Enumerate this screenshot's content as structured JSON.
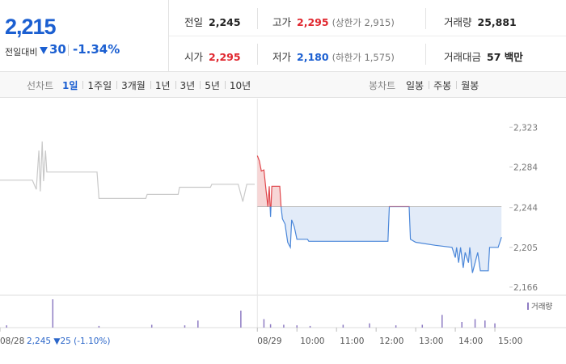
{
  "quote": {
    "price": "2,215",
    "change_label": "전일대비",
    "change": "30",
    "change_rate": "-1.34%",
    "stats": [
      {
        "label": "전일",
        "value": "2,245"
      },
      {
        "label": "고가",
        "value": "2,295",
        "note": "(상한가 2,915)",
        "color": "#e0262e"
      },
      {
        "label": "거래량",
        "value": "25,881"
      },
      {
        "label": "시가",
        "value": "2,295",
        "color": "#e0262e"
      },
      {
        "label": "저가",
        "value": "2,180",
        "note": "(하한가 1,575)",
        "color": "#1b5fd1"
      },
      {
        "label": "거래대금",
        "value": "57 백만"
      }
    ]
  },
  "tabs": {
    "line_label": "선차트",
    "line_periods": [
      "1일",
      "1주일",
      "3개월",
      "1년",
      "3년",
      "5년",
      "10년"
    ],
    "candle_label": "봉차트",
    "candle_periods": [
      "일봉",
      "주봉",
      "월봉"
    ]
  },
  "chart_data": {
    "type": "line",
    "prev_summary": "2,245 ▼25 (-1.10%)",
    "xlim": [
      0,
      772
    ],
    "ylim": [
      2158,
      2351
    ],
    "xticks": [
      {
        "value": 0,
        "label": "08/28"
      },
      {
        "value": 390,
        "label": "08/29"
      },
      {
        "value": 450,
        "label": "10:00"
      },
      {
        "value": 510,
        "label": "11:00"
      },
      {
        "value": 570,
        "label": "12:00"
      },
      {
        "value": 630,
        "label": "13:00"
      },
      {
        "value": 690,
        "label": "14:00"
      },
      {
        "value": 750,
        "label": "15:00"
      }
    ],
    "yticks": [
      {
        "value": 2323,
        "label": "2,323"
      },
      {
        "value": 2284,
        "label": "2,284"
      },
      {
        "value": 2244,
        "label": "2,244"
      },
      {
        "value": 2205,
        "label": "2,205"
      },
      {
        "value": 2166,
        "label": "2,166"
      }
    ],
    "grid": false,
    "reference": 2245,
    "up_color": "#e0474c",
    "down_color": "#4b87d9",
    "up_fill": "#f7d6d6",
    "down_fill": "#e2ebf8",
    "series": [
      {
        "color": "#c9c9c9",
        "x": [
          0,
          49,
          55,
          59,
          61,
          64,
          66,
          69,
          71,
          147,
          150,
          221,
          223,
          270,
          272,
          319,
          321,
          361,
          368,
          374,
          386
        ],
        "values": [
          2271,
          2271,
          2262,
          2300,
          2260,
          2309,
          2270,
          2300,
          2279,
          2279,
          2253,
          2253,
          2257,
          2257,
          2264,
          2264,
          2267,
          2267,
          2250,
          2267,
          2267
        ]
      },
      {
        "color": "split",
        "x": [
          390,
          393,
          396,
          400,
          403,
          406,
          408,
          410,
          412,
          424,
          426,
          428,
          432,
          436,
          440,
          442,
          446,
          450,
          466,
          468,
          588,
          590,
          620,
          622,
          630,
          660,
          685,
          690,
          692,
          695,
          698,
          702,
          705,
          710,
          712,
          716,
          720,
          724,
          728,
          740,
          742,
          755,
          760
        ],
        "values": [
          2295,
          2290,
          2280,
          2281,
          2262,
          2245,
          2265,
          2235,
          2265,
          2265,
          2245,
          2233,
          2228,
          2210,
          2205,
          2232,
          2225,
          2213,
          2213,
          2211,
          2211,
          2245,
          2245,
          2213,
          2210,
          2207,
          2205,
          2195,
          2205,
          2190,
          2205,
          2185,
          2200,
          2190,
          2205,
          2180,
          2190,
          2200,
          2182,
          2182,
          2205,
          2205,
          2215
        ]
      }
    ],
    "volume": {
      "name": "거래량",
      "color": "#8e7cc3",
      "ylim": [
        0,
        100
      ],
      "x": [
        10,
        80,
        150,
        230,
        280,
        300,
        365,
        400,
        410,
        430,
        450,
        470,
        520,
        560,
        600,
        640,
        670,
        700,
        720,
        735,
        750
      ],
      "values": [
        8,
        100,
        6,
        10,
        8,
        25,
        60,
        30,
        12,
        10,
        8,
        6,
        10,
        15,
        8,
        10,
        45,
        20,
        30,
        25,
        15
      ]
    }
  }
}
